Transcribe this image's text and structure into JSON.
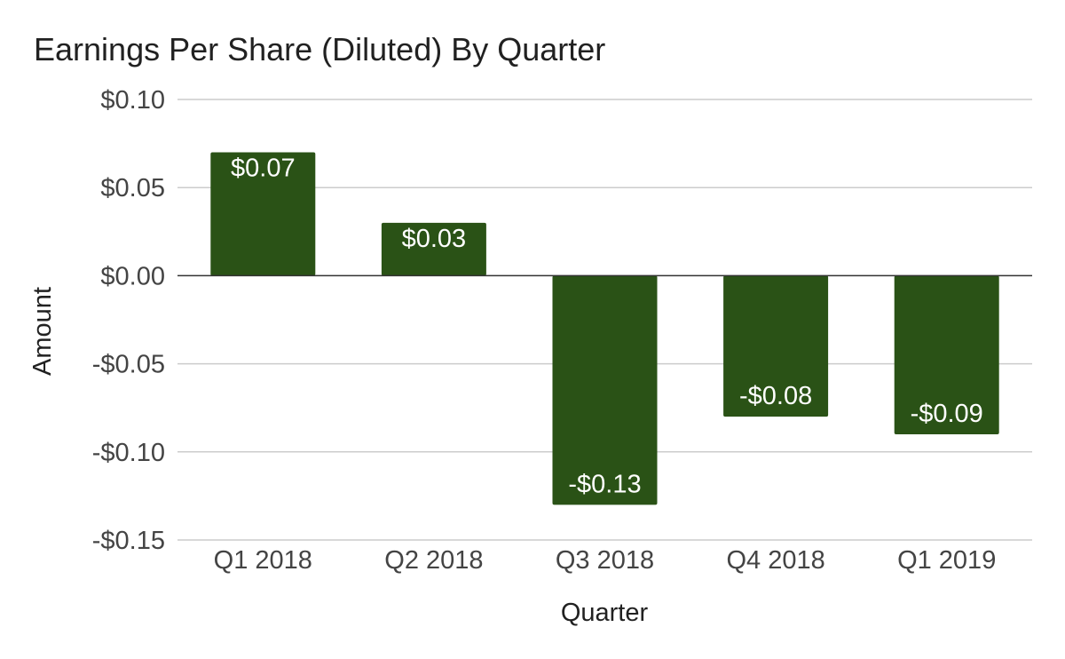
{
  "chart_data": {
    "type": "bar",
    "title": "Earnings Per Share (Diluted) By Quarter",
    "xlabel": "Quarter",
    "ylabel": "Amount",
    "categories": [
      "Q1 2018",
      "Q2 2018",
      "Q3 2018",
      "Q4 2018",
      "Q1 2019"
    ],
    "values": [
      0.07,
      0.03,
      -0.13,
      -0.08,
      -0.09
    ],
    "data_labels": [
      "$0.07",
      "$0.03",
      "-$0.13",
      "-$0.08",
      "-$0.09"
    ],
    "ylim": [
      -0.15,
      0.1
    ],
    "yticks": [
      0.1,
      0.05,
      0.0,
      -0.05,
      -0.1,
      -0.15
    ],
    "ytick_labels": [
      "$0.10",
      "$0.05",
      "$0.00",
      "-$0.05",
      "-$0.10",
      "-$0.15"
    ],
    "grid": true,
    "legend": "none",
    "colors": {
      "bar": "#2a5216"
    }
  }
}
